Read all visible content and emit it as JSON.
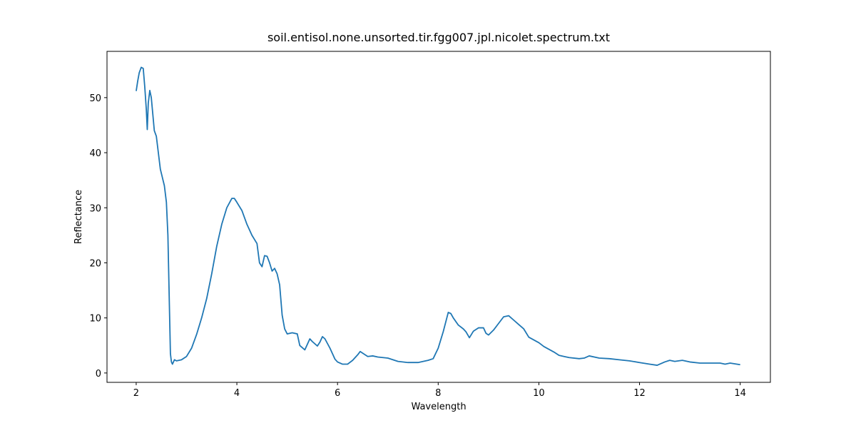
{
  "chart_data": {
    "type": "line",
    "title": "soil.entisol.none.unsorted.tir.fgg007.jpl.nicolet.spectrum.txt",
    "x_label": "Wavelength",
    "y_label": "Reflectance",
    "color": "#1f77b4",
    "x": [
      2.0,
      2.03,
      2.06,
      2.1,
      2.14,
      2.17,
      2.2,
      2.22,
      2.24,
      2.27,
      2.3,
      2.33,
      2.36,
      2.4,
      2.44,
      2.48,
      2.52,
      2.56,
      2.6,
      2.63,
      2.66,
      2.68,
      2.7,
      2.72,
      2.76,
      2.8,
      2.9,
      3.0,
      3.1,
      3.2,
      3.3,
      3.4,
      3.5,
      3.6,
      3.7,
      3.8,
      3.9,
      3.95,
      4.0,
      4.1,
      4.2,
      4.3,
      4.4,
      4.45,
      4.5,
      4.55,
      4.6,
      4.65,
      4.7,
      4.75,
      4.8,
      4.85,
      4.9,
      4.95,
      5.0,
      5.1,
      5.2,
      5.25,
      5.35,
      5.45,
      5.5,
      5.6,
      5.65,
      5.7,
      5.75,
      5.85,
      5.95,
      6.0,
      6.1,
      6.2,
      6.3,
      6.4,
      6.45,
      6.5,
      6.6,
      6.7,
      6.8,
      7.0,
      7.2,
      7.4,
      7.6,
      7.8,
      7.9,
      8.0,
      8.1,
      8.2,
      8.25,
      8.3,
      8.4,
      8.5,
      8.55,
      8.62,
      8.7,
      8.8,
      8.9,
      8.95,
      9.0,
      9.1,
      9.2,
      9.3,
      9.4,
      9.5,
      9.6,
      9.7,
      9.8,
      9.9,
      10.0,
      10.1,
      10.2,
      10.3,
      10.4,
      10.5,
      10.6,
      10.8,
      10.9,
      11.0,
      11.2,
      11.4,
      11.6,
      11.8,
      12.0,
      12.2,
      12.35,
      12.5,
      12.6,
      12.7,
      12.85,
      13.0,
      13.2,
      13.4,
      13.6,
      13.7,
      13.8,
      14.0
    ],
    "values": [
      51.2,
      53,
      54.5,
      55.5,
      55.3,
      52,
      48,
      44.2,
      49,
      51.3,
      50,
      47,
      44,
      43,
      40,
      37,
      35.5,
      34,
      31,
      25,
      12,
      3.5,
      2,
      1.6,
      2.4,
      2.2,
      2.4,
      3,
      4.5,
      7,
      10,
      13.5,
      18,
      23,
      27,
      30,
      31.7,
      31.7,
      31,
      29.5,
      27,
      25,
      23.5,
      20,
      19.3,
      21.3,
      21.2,
      20,
      18.5,
      19,
      18,
      16,
      10.5,
      8,
      7.1,
      7.3,
      7.1,
      5,
      4.2,
      6.2,
      5.7,
      4.9,
      5.6,
      6.6,
      6.2,
      4.5,
      2.5,
      2,
      1.6,
      1.6,
      2.3,
      3.3,
      3.9,
      3.6,
      3,
      3.1,
      2.9,
      2.7,
      2.1,
      1.9,
      1.9,
      2.3,
      2.6,
      4.5,
      7.5,
      11,
      10.8,
      10,
      8.7,
      8,
      7.5,
      6.4,
      7.6,
      8.2,
      8.2,
      7.2,
      6.9,
      7.8,
      9,
      10.2,
      10.4,
      9.6,
      8.8,
      8,
      6.5,
      6,
      5.5,
      4.8,
      4.3,
      3.8,
      3.2,
      3,
      2.8,
      2.6,
      2.7,
      3.1,
      2.7,
      2.6,
      2.4,
      2.2,
      1.9,
      1.6,
      1.4,
      2,
      2.3,
      2.1,
      2.3,
      2,
      1.8,
      1.8,
      1.8,
      1.6,
      1.8,
      1.5
    ],
    "xlim": [
      1.42,
      14.6
    ],
    "ylim": [
      -1.7,
      58.4
    ],
    "xticks": [
      2,
      4,
      6,
      8,
      10,
      12,
      14
    ],
    "yticks": [
      0,
      10,
      20,
      30,
      40,
      50
    ]
  }
}
